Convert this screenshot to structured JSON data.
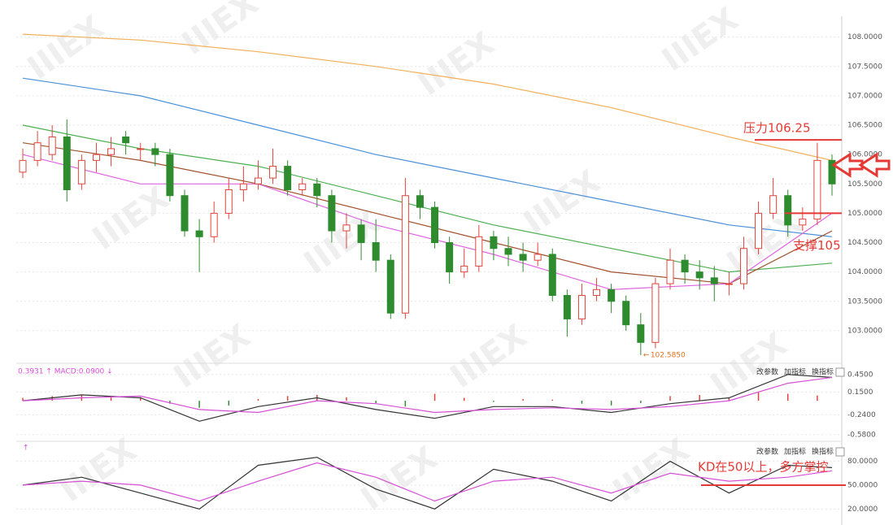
{
  "chart_data": [
    {
      "type": "candlestick",
      "ohlc": [
        [
          105.7,
          106.1,
          105.6,
          105.9
        ],
        [
          105.9,
          106.4,
          105.8,
          106.2
        ],
        [
          106.0,
          106.5,
          105.9,
          106.3
        ],
        [
          106.3,
          106.6,
          105.2,
          105.4
        ],
        [
          105.5,
          106.0,
          105.4,
          105.9
        ],
        [
          105.9,
          106.2,
          105.7,
          106.0
        ],
        [
          106.0,
          106.3,
          105.8,
          106.1
        ],
        [
          106.3,
          106.4,
          106.0,
          106.2
        ],
        [
          106.1,
          106.2,
          105.9,
          106.1
        ],
        [
          106.1,
          106.2,
          105.8,
          106.0
        ],
        [
          106.0,
          106.1,
          105.2,
          105.3
        ],
        [
          105.3,
          105.4,
          104.6,
          104.7
        ],
        [
          104.7,
          104.9,
          104.0,
          104.6
        ],
        [
          104.6,
          105.2,
          104.5,
          105.0
        ],
        [
          105.0,
          105.6,
          104.9,
          105.4
        ],
        [
          105.4,
          105.8,
          105.2,
          105.5
        ],
        [
          105.5,
          105.9,
          105.4,
          105.6
        ],
        [
          105.6,
          106.1,
          105.5,
          105.8
        ],
        [
          105.8,
          105.9,
          105.3,
          105.4
        ],
        [
          105.4,
          105.6,
          105.3,
          105.5
        ],
        [
          105.5,
          105.6,
          105.1,
          105.3
        ],
        [
          105.3,
          105.4,
          104.5,
          104.7
        ],
        [
          104.7,
          105.0,
          104.4,
          104.8
        ],
        [
          104.8,
          104.9,
          104.2,
          104.5
        ],
        [
          104.5,
          104.9,
          104.0,
          104.2
        ],
        [
          104.2,
          104.3,
          103.2,
          103.3
        ],
        [
          103.3,
          105.6,
          103.2,
          105.3
        ],
        [
          105.3,
          105.4,
          104.9,
          105.1
        ],
        [
          105.1,
          105.2,
          104.4,
          104.5
        ],
        [
          104.5,
          104.6,
          103.8,
          104.0
        ],
        [
          104.0,
          104.4,
          103.9,
          104.1
        ],
        [
          104.1,
          104.8,
          104.0,
          104.6
        ],
        [
          104.6,
          104.7,
          104.2,
          104.4
        ],
        [
          104.4,
          104.6,
          104.1,
          104.3
        ],
        [
          104.3,
          104.5,
          104.0,
          104.2
        ],
        [
          104.2,
          104.5,
          104.1,
          104.3
        ],
        [
          104.3,
          104.4,
          103.5,
          103.6
        ],
        [
          103.6,
          103.7,
          102.9,
          103.2
        ],
        [
          103.2,
          103.8,
          103.1,
          103.6
        ],
        [
          103.6,
          103.9,
          103.5,
          103.7
        ],
        [
          103.7,
          103.8,
          103.3,
          103.5
        ],
        [
          103.5,
          103.6,
          103.0,
          103.1
        ],
        [
          103.1,
          103.3,
          102.585,
          102.8
        ],
        [
          102.8,
          103.9,
          102.7,
          103.8
        ],
        [
          103.8,
          104.4,
          103.7,
          104.2
        ],
        [
          104.2,
          104.3,
          103.8,
          104.0
        ],
        [
          104.0,
          104.2,
          103.7,
          103.9
        ],
        [
          103.9,
          104.1,
          103.5,
          103.8
        ],
        [
          103.8,
          104.0,
          103.6,
          103.8
        ],
        [
          103.8,
          104.6,
          103.7,
          104.4
        ],
        [
          104.4,
          105.2,
          104.3,
          105.0
        ],
        [
          105.0,
          105.6,
          104.9,
          105.3
        ],
        [
          105.3,
          105.4,
          104.6,
          104.8
        ],
        [
          104.8,
          105.1,
          104.7,
          104.9
        ],
        [
          104.9,
          106.2,
          104.8,
          105.9
        ],
        [
          105.9,
          106.0,
          105.3,
          105.5
        ]
      ],
      "up_color": "#e0453a",
      "down_color": "#2e8b2e",
      "series": [
        {
          "color": "#f2b05a",
          "x": [
            0,
            8,
            16,
            24,
            32,
            40,
            48,
            55
          ],
          "values": [
            108.05,
            107.95,
            107.75,
            107.5,
            107.2,
            106.8,
            106.3,
            105.9
          ]
        },
        {
          "color": "#4a90d9",
          "x": [
            0,
            8,
            16,
            24,
            32,
            40,
            48,
            55
          ],
          "values": [
            107.3,
            107.0,
            106.5,
            106.0,
            105.6,
            105.2,
            104.8,
            104.6
          ]
        },
        {
          "color": "#4caf50",
          "x": [
            0,
            8,
            16,
            24,
            32,
            40,
            48,
            55
          ],
          "values": [
            106.5,
            106.1,
            105.8,
            105.3,
            104.8,
            104.4,
            104.0,
            104.15
          ]
        },
        {
          "color": "#a0522d",
          "x": [
            0,
            8,
            16,
            24,
            32,
            40,
            48,
            55
          ],
          "values": [
            106.2,
            105.9,
            105.5,
            105.0,
            104.5,
            104.0,
            103.8,
            104.7
          ]
        },
        {
          "color": "#e066e0",
          "x": [
            0,
            8,
            16,
            24,
            32,
            40,
            48,
            55
          ],
          "values": [
            106.0,
            105.5,
            105.5,
            104.8,
            104.3,
            103.7,
            103.8,
            105.0
          ]
        }
      ],
      "xlim": [
        0,
        55
      ],
      "ylim": [
        102.5,
        108.3
      ],
      "yticks": [
        {
          "value": 103.0,
          "label": "103.0000"
        },
        {
          "value": 103.5,
          "label": "103.5000"
        },
        {
          "value": 104.0,
          "label": "104.0000"
        },
        {
          "value": 104.5,
          "label": "104.5000"
        },
        {
          "value": 105.0,
          "label": "105.0000"
        },
        {
          "value": 105.5,
          "label": "105.5000"
        },
        {
          "value": 106.0,
          "label": "106.0000"
        },
        {
          "value": 106.5,
          "label": "106.5000"
        },
        {
          "value": 107.0,
          "label": "107.0000"
        },
        {
          "value": 107.5,
          "label": "107.5000"
        },
        {
          "value": 108.0,
          "label": "108.0000"
        }
      ],
      "low": {
        "x": 42,
        "value": 102.585,
        "label": "102.5850"
      },
      "annotations": [
        {
          "text": "压力106.25",
          "value": 106.25
        },
        {
          "text": "支撑105",
          "value": 105
        }
      ],
      "watermark": "IIIEX"
    },
    {
      "type": "macd",
      "header": "0.3931 ↑ MACD:0.0900 ↓",
      "tools": [
        "改参数",
        "加指标",
        "换指标"
      ],
      "hist_x": [
        0,
        2,
        4,
        6,
        8,
        10,
        12,
        14,
        16,
        18,
        20,
        22,
        24,
        26,
        28,
        30,
        32,
        34,
        36,
        38,
        40,
        42,
        44,
        46,
        48,
        50,
        52,
        54
      ],
      "hist": [
        0.05,
        0.08,
        0.1,
        0.08,
        0.06,
        -0.05,
        -0.12,
        -0.08,
        0.03,
        0.08,
        0.1,
        0.06,
        -0.04,
        -0.1,
        0.12,
        0.05,
        -0.02,
        0.03,
        0.02,
        -0.05,
        -0.08,
        -0.04,
        0.08,
        0.1,
        0.05,
        0.15,
        0.12,
        0.09
      ],
      "series": [
        {
          "color": "#333333",
          "x": [
            0,
            4,
            8,
            12,
            16,
            20,
            24,
            28,
            32,
            36,
            40,
            44,
            48,
            52,
            55
          ],
          "values": [
            0.0,
            0.1,
            0.05,
            -0.35,
            -0.1,
            0.05,
            -0.15,
            -0.3,
            -0.1,
            -0.1,
            -0.2,
            -0.05,
            0.05,
            0.45,
            0.4
          ]
        },
        {
          "color": "#d64fd6",
          "x": [
            0,
            4,
            8,
            12,
            16,
            20,
            24,
            28,
            32,
            36,
            40,
            44,
            48,
            52,
            55
          ],
          "values": [
            0.0,
            0.05,
            0.08,
            -0.15,
            -0.2,
            0.0,
            -0.05,
            -0.2,
            -0.15,
            -0.12,
            -0.15,
            -0.1,
            0.0,
            0.3,
            0.4
          ]
        }
      ],
      "up_color": "#e0453a",
      "down_color": "#2e8b2e",
      "xlim": [
        0,
        55
      ],
      "ylim": [
        -0.68,
        0.6
      ],
      "yticks": [
        {
          "value": 0.45,
          "label": "0.4500"
        },
        {
          "value": 0.15,
          "label": "0.1500"
        },
        {
          "value": -0.24,
          "label": "-0.2400"
        },
        {
          "value": -0.58,
          "label": "-0.5800"
        }
      ]
    },
    {
      "type": "kd",
      "tools": [
        "改参数",
        "加指标",
        "换指标"
      ],
      "series": [
        {
          "color": "#333333",
          "x": [
            0,
            4,
            8,
            12,
            16,
            20,
            24,
            28,
            32,
            36,
            40,
            44,
            48,
            52,
            55
          ],
          "values": [
            50,
            60,
            40,
            20,
            75,
            85,
            45,
            20,
            70,
            55,
            30,
            80,
            40,
            75,
            72
          ]
        },
        {
          "color": "#d64fd6",
          "x": [
            0,
            4,
            8,
            12,
            16,
            20,
            24,
            28,
            32,
            36,
            40,
            44,
            48,
            52,
            55
          ],
          "values": [
            50,
            55,
            50,
            30,
            55,
            78,
            60,
            30,
            55,
            60,
            40,
            65,
            55,
            60,
            68
          ]
        }
      ],
      "xlim": [
        0,
        55
      ],
      "ylim": [
        5,
        100
      ],
      "yticks": [
        {
          "value": 80,
          "label": "80.0000"
        },
        {
          "value": 50,
          "label": "50.0000"
        },
        {
          "value": 20,
          "label": "20.0000"
        }
      ],
      "annotation": {
        "text": "KD在50以上，多方掌控",
        "value": 50
      }
    }
  ]
}
